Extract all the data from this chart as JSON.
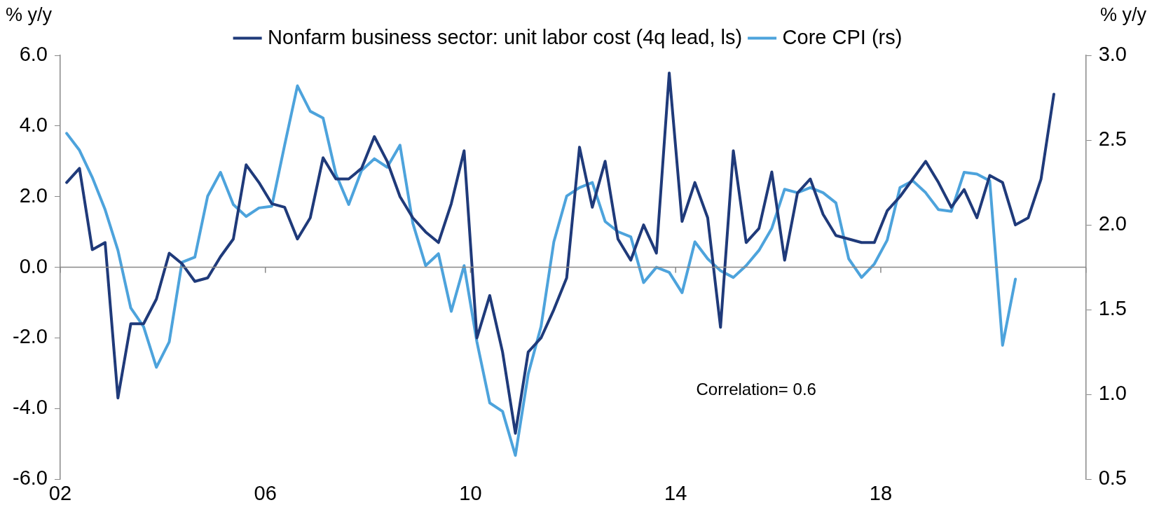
{
  "chart_data": {
    "type": "line",
    "ylabel": "% y/y",
    "y2label": "% y/y",
    "legend": "top",
    "grid": false,
    "marker": "none",
    "line_style": "solid",
    "x": [
      2002.125,
      2002.375,
      2002.625,
      2002.875,
      2003.125,
      2003.375,
      2003.625,
      2003.875,
      2004.125,
      2004.375,
      2004.625,
      2004.875,
      2005.125,
      2005.375,
      2005.625,
      2005.875,
      2006.125,
      2006.375,
      2006.625,
      2006.875,
      2007.125,
      2007.375,
      2007.625,
      2007.875,
      2008.125,
      2008.375,
      2008.625,
      2008.875,
      2009.125,
      2009.375,
      2009.625,
      2009.875,
      2010.125,
      2010.375,
      2010.625,
      2010.875,
      2011.125,
      2011.375,
      2011.625,
      2011.875,
      2012.125,
      2012.375,
      2012.625,
      2012.875,
      2013.125,
      2013.375,
      2013.625,
      2013.875,
      2014.125,
      2014.375,
      2014.625,
      2014.875,
      2015.125,
      2015.375,
      2015.625,
      2015.875,
      2016.125,
      2016.375,
      2016.625,
      2016.875,
      2017.125,
      2017.375,
      2017.625,
      2017.875,
      2018.125,
      2018.375,
      2018.625,
      2018.875,
      2019.125,
      2019.375,
      2019.625,
      2019.875,
      2020.125,
      2020.375,
      2020.625,
      2020.875,
      2021.125,
      2021.375
    ],
    "xlim": [
      2002,
      2022
    ],
    "xticks": [
      {
        "value": 2002,
        "label": "02"
      },
      {
        "value": 2006,
        "label": "06"
      },
      {
        "value": 2010,
        "label": "10"
      },
      {
        "value": 2014,
        "label": "14"
      },
      {
        "value": 2018,
        "label": "18"
      },
      {
        "value": 2022,
        "label": null
      }
    ],
    "ylim": [
      -6,
      6
    ],
    "yticks": [
      {
        "value": -6,
        "label": "-6.0"
      },
      {
        "value": -4,
        "label": "-4.0"
      },
      {
        "value": -2,
        "label": "-2.0"
      },
      {
        "value": 0,
        "label": "0.0"
      },
      {
        "value": 2,
        "label": "2.0"
      },
      {
        "value": 4,
        "label": "4.0"
      },
      {
        "value": 6,
        "label": "6.0"
      }
    ],
    "y2lim": [
      0.5,
      3
    ],
    "y2ticks": [
      {
        "value": 0.5,
        "label": "0.5"
      },
      {
        "value": 1,
        "label": "1.0"
      },
      {
        "value": 1.5,
        "label": "1.5"
      },
      {
        "value": 2,
        "label": "2.0"
      },
      {
        "value": 2.5,
        "label": "2.5"
      },
      {
        "value": 3,
        "label": "3.0"
      }
    ],
    "series": [
      {
        "name": "Nonfarm business sector: unit labor cost (4q lead, ls)",
        "color": "#1f3a7a",
        "values": [
          2.4,
          2.8,
          0.5,
          0.7,
          -3.7,
          -1.6,
          -1.6,
          -0.9,
          0.4,
          0.1,
          -0.4,
          -0.3,
          0.3,
          0.8,
          2.9,
          2.4,
          1.8,
          1.7,
          0.8,
          1.4,
          3.1,
          2.5,
          2.5,
          2.8,
          3.7,
          3.0,
          2.0,
          1.4,
          1.0,
          0.7,
          1.8,
          3.3,
          -2.0,
          -0.8,
          -2.4,
          -4.7,
          -2.4,
          -2.0,
          -1.2,
          -0.3,
          3.4,
          1.7,
          3.0,
          0.8,
          0.2,
          1.2,
          0.4,
          5.5,
          1.3,
          2.4,
          1.4,
          -1.7,
          3.3,
          0.7,
          1.1,
          2.7,
          0.2,
          2.1,
          2.5,
          1.5,
          0.9,
          0.8,
          0.7,
          0.7,
          1.6,
          2.0,
          2.5,
          3.0,
          2.4,
          1.7,
          2.2,
          1.4,
          2.6,
          2.4,
          1.2,
          1.4,
          2.5,
          4.9
        ]
      },
      {
        "name": "Core CPI (rs)",
        "color": "#4da3dc",
        "axis": "y2",
        "values": [
          2.54,
          2.44,
          2.28,
          2.09,
          1.85,
          1.51,
          1.4,
          1.16,
          1.31,
          1.78,
          1.81,
          2.17,
          2.31,
          2.12,
          2.05,
          2.1,
          2.11,
          2.47,
          2.82,
          2.67,
          2.63,
          2.3,
          2.12,
          2.32,
          2.39,
          2.34,
          2.47,
          2.01,
          1.76,
          1.83,
          1.49,
          1.76,
          1.31,
          0.95,
          0.9,
          0.64,
          1.12,
          1.4,
          1.9,
          2.17,
          2.22,
          2.25,
          2.02,
          1.96,
          1.93,
          1.66,
          1.75,
          1.72,
          1.6,
          1.9,
          1.8,
          1.73,
          1.69,
          1.76,
          1.85,
          1.98,
          2.21,
          2.19,
          2.22,
          2.19,
          2.13,
          1.8,
          1.69,
          1.77,
          1.91,
          2.22,
          2.26,
          2.19,
          2.09,
          2.08,
          2.31,
          2.3,
          2.26,
          1.29,
          1.68,
          null,
          null,
          null
        ]
      }
    ],
    "ref_lines": [
      {
        "axis": "y",
        "value": 0,
        "color": "#888888"
      }
    ],
    "annotations": [
      "Correlation= 0.6"
    ]
  }
}
